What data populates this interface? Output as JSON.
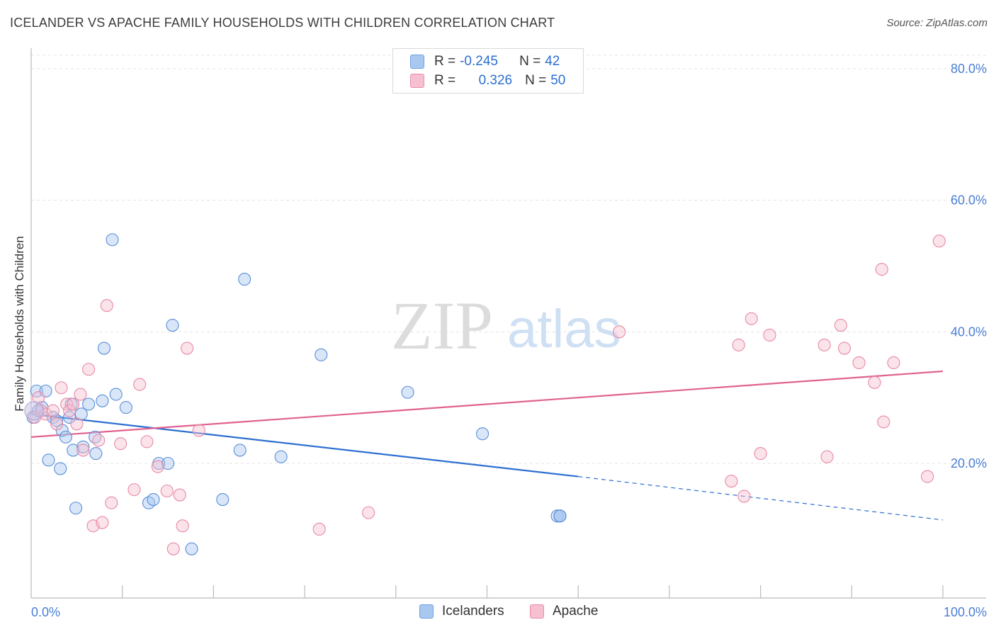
{
  "title": "ICELANDER VS APACHE FAMILY HOUSEHOLDS WITH CHILDREN CORRELATION CHART",
  "source": "Source: ZipAtlas.com",
  "watermark": {
    "zip": "ZIP",
    "atlas": "atlas"
  },
  "legend": [
    {
      "r_label": "R =",
      "r_value": "-0.245",
      "n_label": "N =",
      "n_value": "42",
      "color": "#a9c8f0",
      "border": "#6f9fe0"
    },
    {
      "r_label": "R =",
      "r_value": "0.326",
      "n_label": "N =",
      "n_value": "50",
      "color": "#f7c0d0",
      "border": "#ea8aa8"
    }
  ],
  "bottom_legend": [
    "Icelanders",
    "Apache"
  ],
  "colors": {
    "blue": "#2c6fd1",
    "pink": "#e0628f",
    "blue_fill": "#a9c8f0",
    "pink_fill": "#f7c0d0",
    "tick": "#4a7fd4"
  },
  "chart_data": {
    "type": "scatter",
    "xlabel": "",
    "ylabel": "Family Households with Children",
    "xlim": [
      0,
      100
    ],
    "ylim": [
      0,
      85
    ],
    "x_ticks": [
      "0.0%",
      "100.0%"
    ],
    "y_ticks": [
      {
        "value": 80,
        "label": "80.0%"
      },
      {
        "value": 60,
        "label": "60.0%"
      },
      {
        "value": 40,
        "label": "40.0%"
      },
      {
        "value": 20,
        "label": "20.0%"
      }
    ],
    "series": [
      {
        "name": "Icelanders",
        "color": "#2c6fd1",
        "points": [
          [
            0.2,
            27.0
          ],
          [
            0.6,
            31.0
          ],
          [
            0.8,
            28.0
          ],
          [
            1.2,
            28.5
          ],
          [
            1.6,
            31.0
          ],
          [
            1.9,
            20.5
          ],
          [
            2.4,
            27.0
          ],
          [
            2.8,
            26.5
          ],
          [
            3.2,
            19.2
          ],
          [
            3.4,
            25.0
          ],
          [
            3.8,
            24.0
          ],
          [
            4.2,
            27.0
          ],
          [
            4.4,
            29.0
          ],
          [
            4.6,
            22.0
          ],
          [
            4.9,
            13.2
          ],
          [
            5.5,
            27.5
          ],
          [
            5.7,
            22.5
          ],
          [
            6.3,
            29.0
          ],
          [
            7.0,
            24.0
          ],
          [
            7.1,
            21.5
          ],
          [
            7.8,
            29.5
          ],
          [
            8.0,
            37.5
          ],
          [
            8.9,
            54.0
          ],
          [
            9.3,
            30.5
          ],
          [
            10.4,
            28.5
          ],
          [
            12.9,
            14.0
          ],
          [
            13.4,
            14.5
          ],
          [
            14.0,
            20.0
          ],
          [
            15.0,
            20.0
          ],
          [
            15.5,
            41.0
          ],
          [
            17.6,
            7.0
          ],
          [
            21.0,
            14.5
          ],
          [
            22.9,
            22.0
          ],
          [
            23.4,
            48.0
          ],
          [
            27.4,
            21.0
          ],
          [
            31.8,
            36.5
          ],
          [
            41.3,
            30.8
          ],
          [
            49.5,
            24.5
          ],
          [
            57.7,
            12.0
          ],
          [
            58.0,
            12.0
          ],
          [
            58.0,
            12.0
          ],
          [
            58.0,
            12.0
          ]
        ],
        "trend": {
          "x0": 0,
          "y0": 27.5,
          "x1": 60,
          "y1": 18.0,
          "dash_to_x": 100,
          "dash_to_y": 11.4
        }
      },
      {
        "name": "Apache",
        "color": "#e0628f",
        "points": [
          [
            0.4,
            27.0
          ],
          [
            0.8,
            30.0
          ],
          [
            1.1,
            28.0
          ],
          [
            1.6,
            27.5
          ],
          [
            2.4,
            28.0
          ],
          [
            2.8,
            26.0
          ],
          [
            3.3,
            31.5
          ],
          [
            3.9,
            29.0
          ],
          [
            4.2,
            28.0
          ],
          [
            4.6,
            29.0
          ],
          [
            5.0,
            26.0
          ],
          [
            5.4,
            30.5
          ],
          [
            5.7,
            22.0
          ],
          [
            6.3,
            34.3
          ],
          [
            6.8,
            10.5
          ],
          [
            7.4,
            23.5
          ],
          [
            7.8,
            11.0
          ],
          [
            8.3,
            44.0
          ],
          [
            8.8,
            14.0
          ],
          [
            9.8,
            23.0
          ],
          [
            11.3,
            16.0
          ],
          [
            11.9,
            32.0
          ],
          [
            12.7,
            23.3
          ],
          [
            13.9,
            19.5
          ],
          [
            14.9,
            15.8
          ],
          [
            15.6,
            7.0
          ],
          [
            16.3,
            15.2
          ],
          [
            16.6,
            10.5
          ],
          [
            17.1,
            37.5
          ],
          [
            18.4,
            25.0
          ],
          [
            31.6,
            10.0
          ],
          [
            37.0,
            12.5
          ],
          [
            64.5,
            40.0
          ],
          [
            76.8,
            17.3
          ],
          [
            77.6,
            38.0
          ],
          [
            78.2,
            15.0
          ],
          [
            79.0,
            42.0
          ],
          [
            80.0,
            21.5
          ],
          [
            81.0,
            39.5
          ],
          [
            87.0,
            38.0
          ],
          [
            87.3,
            21.0
          ],
          [
            88.8,
            41.0
          ],
          [
            89.2,
            37.5
          ],
          [
            90.8,
            35.3
          ],
          [
            92.5,
            32.3
          ],
          [
            93.3,
            49.5
          ],
          [
            93.5,
            26.3
          ],
          [
            94.6,
            35.3
          ],
          [
            98.3,
            18.0
          ],
          [
            99.6,
            53.8
          ]
        ],
        "trend": {
          "x0": 0,
          "y0": 24.0,
          "x1": 100,
          "y1": 34.0
        }
      }
    ]
  }
}
